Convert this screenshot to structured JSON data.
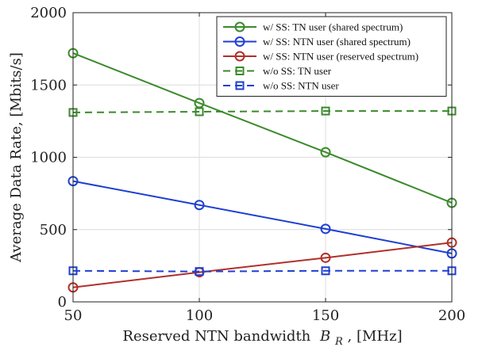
{
  "chart_data": {
    "type": "line",
    "xlabel": "Reserved NTN bandwidth",
    "xlabel_symbol": "B",
    "xlabel_subscript": "R",
    "xlabel_unit": ", [MHz]",
    "ylabel": "Average Data Rate, [Mbits/s]",
    "xlim": [
      50,
      200
    ],
    "ylim": [
      0,
      2000
    ],
    "xticks": [
      50,
      100,
      150,
      200
    ],
    "yticks": [
      0,
      500,
      1000,
      1500,
      2000
    ],
    "grid": true,
    "legend_position": "top-right",
    "x": [
      50,
      100,
      150,
      200
    ],
    "series": [
      {
        "name": "w/ SS: TN user (shared spectrum)",
        "values": [
          1720,
          1375,
          1035,
          685
        ],
        "color": "#3a8a2a",
        "dash": "solid",
        "marker": "circle"
      },
      {
        "name": "w/ SS: NTN user (shared spectrum)",
        "values": [
          835,
          670,
          505,
          335
        ],
        "color": "#1f3fd1",
        "dash": "solid",
        "marker": "circle"
      },
      {
        "name": "w/ SS: NTN user (reserved spectrum)",
        "values": [
          100,
          205,
          305,
          410
        ],
        "color": "#b0302a",
        "dash": "solid",
        "marker": "circle"
      },
      {
        "name": "w/o SS: TN user",
        "values": [
          1310,
          1315,
          1320,
          1320
        ],
        "color": "#3a8a2a",
        "dash": "dashed",
        "marker": "square"
      },
      {
        "name": "w/o SS: NTN user",
        "values": [
          215,
          210,
          215,
          215
        ],
        "color": "#1f3fd1",
        "dash": "dashed",
        "marker": "square"
      }
    ]
  }
}
